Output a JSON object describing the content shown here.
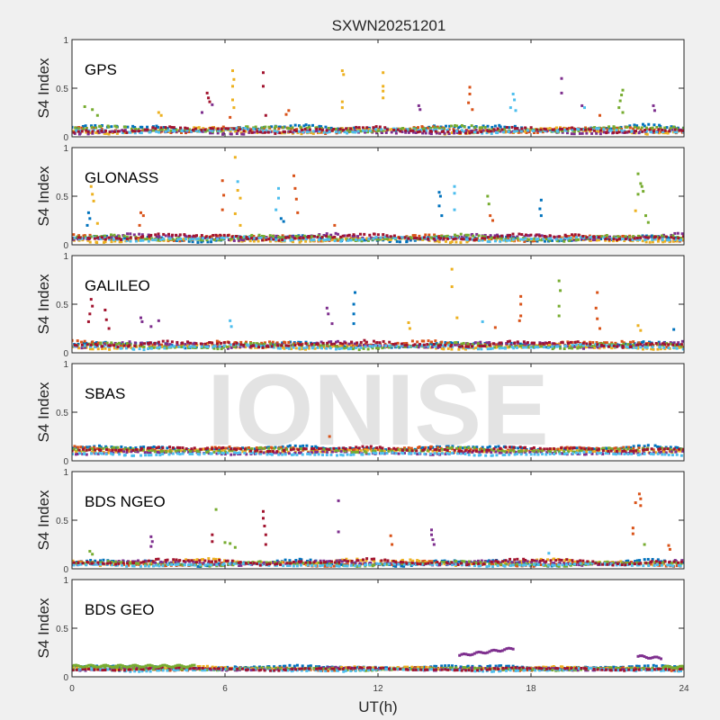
{
  "chart_data": {
    "type": "scatter",
    "title": "SXWN20251201",
    "xlabel": "UT(h)",
    "ylabel": "S4 Index",
    "xlim": [
      0,
      24
    ],
    "ylim": [
      0,
      1
    ],
    "xticks": [
      "0",
      "6",
      "12",
      "18",
      "24"
    ],
    "xtick_values": [
      0,
      6,
      12,
      18,
      24
    ],
    "yticks": [
      "0",
      "0.5",
      "1"
    ],
    "ytick_values": [
      0,
      0.5,
      1
    ],
    "watermark": "IONISE",
    "colors": [
      "#0072BD",
      "#D95319",
      "#EDB120",
      "#7E2F8E",
      "#77AC30",
      "#4DBEEE",
      "#A2142F"
    ],
    "panels": [
      {
        "name": "GPS",
        "baseline": [
          [
            0.09,
            0.02
          ],
          [
            0.07,
            0.02
          ],
          [
            0.06,
            0.02
          ],
          [
            0.05,
            0.015
          ],
          [
            0.08,
            0.02
          ],
          [
            0.06,
            0.015
          ],
          [
            0.07,
            0.02
          ]
        ],
        "spikes": [
          [
            0.5,
            0.31,
            4
          ],
          [
            0.8,
            0.28,
            4
          ],
          [
            1.0,
            0.22,
            4
          ],
          [
            3.4,
            0.25,
            2
          ],
          [
            3.5,
            0.22,
            2
          ],
          [
            5.3,
            0.45,
            6
          ],
          [
            5.35,
            0.4,
            6
          ],
          [
            5.4,
            0.36,
            6
          ],
          [
            5.5,
            0.33,
            3
          ],
          [
            5.1,
            0.25,
            3
          ],
          [
            6.3,
            0.68,
            2
          ],
          [
            6.35,
            0.59,
            2
          ],
          [
            6.3,
            0.52,
            2
          ],
          [
            6.3,
            0.38,
            2
          ],
          [
            6.35,
            0.3,
            2
          ],
          [
            6.2,
            0.2,
            1
          ],
          [
            7.5,
            0.66,
            6
          ],
          [
            7.5,
            0.52,
            6
          ],
          [
            7.6,
            0.22,
            6
          ],
          [
            8.4,
            0.23,
            1
          ],
          [
            8.5,
            0.27,
            1
          ],
          [
            10.6,
            0.68,
            2
          ],
          [
            10.65,
            0.64,
            2
          ],
          [
            10.6,
            0.36,
            2
          ],
          [
            10.6,
            0.3,
            2
          ],
          [
            12.2,
            0.66,
            2
          ],
          [
            12.2,
            0.52,
            2
          ],
          [
            12.2,
            0.47,
            2
          ],
          [
            12.2,
            0.4,
            2
          ],
          [
            13.6,
            0.32,
            3
          ],
          [
            13.65,
            0.28,
            3
          ],
          [
            15.6,
            0.51,
            1
          ],
          [
            15.6,
            0.44,
            1
          ],
          [
            15.55,
            0.35,
            1
          ],
          [
            15.7,
            0.28,
            1
          ],
          [
            17.3,
            0.44,
            5
          ],
          [
            17.35,
            0.38,
            5
          ],
          [
            17.2,
            0.3,
            5
          ],
          [
            17.4,
            0.27,
            5
          ],
          [
            19.2,
            0.6,
            3
          ],
          [
            19.2,
            0.45,
            3
          ],
          [
            20.0,
            0.32,
            3
          ],
          [
            20.1,
            0.3,
            5
          ],
          [
            20.7,
            0.22,
            1
          ],
          [
            21.6,
            0.48,
            4
          ],
          [
            21.55,
            0.43,
            4
          ],
          [
            21.5,
            0.37,
            4
          ],
          [
            21.45,
            0.3,
            4
          ],
          [
            21.6,
            0.25,
            4
          ],
          [
            22.8,
            0.32,
            3
          ],
          [
            22.85,
            0.27,
            3
          ]
        ]
      },
      {
        "name": "GLONASS",
        "baseline": [
          [
            0.06,
            0.02
          ],
          [
            0.07,
            0.02
          ],
          [
            0.05,
            0.015
          ],
          [
            0.08,
            0.02
          ],
          [
            0.07,
            0.02
          ],
          [
            0.06,
            0.015
          ],
          [
            0.08,
            0.02
          ]
        ],
        "spikes": [
          [
            0.75,
            0.6,
            2
          ],
          [
            0.8,
            0.52,
            2
          ],
          [
            0.85,
            0.45,
            2
          ],
          [
            0.65,
            0.33,
            0
          ],
          [
            0.7,
            0.27,
            0
          ],
          [
            0.6,
            0.2,
            0
          ],
          [
            1.0,
            0.22,
            2
          ],
          [
            2.7,
            0.33,
            1
          ],
          [
            2.8,
            0.3,
            1
          ],
          [
            2.65,
            0.2,
            1
          ],
          [
            5.9,
            0.66,
            1
          ],
          [
            5.95,
            0.51,
            1
          ],
          [
            5.9,
            0.36,
            1
          ],
          [
            6.4,
            0.9,
            2
          ],
          [
            6.5,
            0.65,
            5
          ],
          [
            6.5,
            0.56,
            2
          ],
          [
            6.6,
            0.48,
            2
          ],
          [
            6.4,
            0.32,
            2
          ],
          [
            6.6,
            0.2,
            2
          ],
          [
            8.1,
            0.58,
            5
          ],
          [
            8.1,
            0.48,
            5
          ],
          [
            8.0,
            0.36,
            5
          ],
          [
            8.2,
            0.27,
            0
          ],
          [
            8.3,
            0.24,
            0
          ],
          [
            8.7,
            0.71,
            1
          ],
          [
            8.75,
            0.58,
            1
          ],
          [
            8.8,
            0.47,
            1
          ],
          [
            8.85,
            0.33,
            1
          ],
          [
            10.3,
            0.2,
            1
          ],
          [
            14.4,
            0.54,
            0
          ],
          [
            14.45,
            0.5,
            0
          ],
          [
            14.4,
            0.4,
            0
          ],
          [
            14.5,
            0.3,
            0
          ],
          [
            15.0,
            0.6,
            5
          ],
          [
            15.0,
            0.53,
            5
          ],
          [
            15.0,
            0.36,
            5
          ],
          [
            16.3,
            0.5,
            4
          ],
          [
            16.35,
            0.42,
            4
          ],
          [
            16.4,
            0.3,
            1
          ],
          [
            16.5,
            0.25,
            1
          ],
          [
            18.4,
            0.46,
            0
          ],
          [
            18.35,
            0.37,
            0
          ],
          [
            18.4,
            0.3,
            0
          ],
          [
            22.2,
            0.73,
            4
          ],
          [
            22.3,
            0.63,
            4
          ],
          [
            22.35,
            0.6,
            4
          ],
          [
            22.4,
            0.55,
            4
          ],
          [
            22.2,
            0.52,
            4
          ],
          [
            22.1,
            0.35,
            2
          ],
          [
            22.5,
            0.3,
            4
          ],
          [
            22.6,
            0.23,
            4
          ]
        ]
      },
      {
        "name": "GALILEO",
        "baseline": [
          [
            0.08,
            0.02
          ],
          [
            0.09,
            0.02
          ],
          [
            0.06,
            0.015
          ],
          [
            0.08,
            0.02
          ],
          [
            0.07,
            0.02
          ],
          [
            0.06,
            0.015
          ],
          [
            0.09,
            0.02
          ]
        ],
        "spikes": [
          [
            0.75,
            0.55,
            6
          ],
          [
            0.8,
            0.48,
            6
          ],
          [
            0.7,
            0.4,
            6
          ],
          [
            0.65,
            0.32,
            6
          ],
          [
            1.3,
            0.44,
            6
          ],
          [
            1.35,
            0.34,
            6
          ],
          [
            1.45,
            0.25,
            6
          ],
          [
            2.7,
            0.36,
            3
          ],
          [
            2.75,
            0.32,
            3
          ],
          [
            3.1,
            0.27,
            3
          ],
          [
            3.4,
            0.33,
            3
          ],
          [
            6.2,
            0.33,
            5
          ],
          [
            6.25,
            0.27,
            5
          ],
          [
            10.0,
            0.46,
            3
          ],
          [
            10.05,
            0.4,
            3
          ],
          [
            10.2,
            0.3,
            3
          ],
          [
            11.1,
            0.62,
            0
          ],
          [
            11.05,
            0.5,
            0
          ],
          [
            11.05,
            0.4,
            0
          ],
          [
            11.05,
            0.3,
            0
          ],
          [
            13.2,
            0.31,
            2
          ],
          [
            13.25,
            0.25,
            2
          ],
          [
            14.9,
            0.86,
            2
          ],
          [
            14.9,
            0.68,
            2
          ],
          [
            15.1,
            0.36,
            2
          ],
          [
            16.6,
            0.26,
            1
          ],
          [
            16.1,
            0.32,
            5
          ],
          [
            17.6,
            0.58,
            1
          ],
          [
            17.6,
            0.5,
            1
          ],
          [
            17.6,
            0.38,
            1
          ],
          [
            17.55,
            0.33,
            1
          ],
          [
            19.1,
            0.74,
            4
          ],
          [
            19.15,
            0.64,
            4
          ],
          [
            19.1,
            0.48,
            4
          ],
          [
            19.1,
            0.38,
            4
          ],
          [
            20.6,
            0.62,
            1
          ],
          [
            20.55,
            0.46,
            1
          ],
          [
            20.6,
            0.35,
            1
          ],
          [
            20.7,
            0.25,
            1
          ],
          [
            22.2,
            0.28,
            2
          ],
          [
            22.3,
            0.23,
            2
          ],
          [
            23.6,
            0.24,
            0
          ]
        ]
      },
      {
        "name": "SBAS",
        "baseline": [
          [
            0.13,
            0.015
          ],
          [
            0.12,
            0.015
          ],
          [
            0.1,
            0.01
          ],
          [
            0.08,
            0.01
          ],
          [
            0.11,
            0.015
          ],
          [
            0.07,
            0.01
          ],
          [
            0.12,
            0.015
          ]
        ],
        "spikes": [
          [
            10.1,
            0.25,
            1
          ]
        ]
      },
      {
        "name": "BDS NGEO",
        "baseline": [
          [
            0.06,
            0.02
          ],
          [
            0.05,
            0.015
          ],
          [
            0.07,
            0.02
          ],
          [
            0.06,
            0.015
          ],
          [
            0.05,
            0.015
          ],
          [
            0.04,
            0.01
          ],
          [
            0.07,
            0.02
          ]
        ],
        "spikes": [
          [
            0.7,
            0.18,
            4
          ],
          [
            0.8,
            0.15,
            4
          ],
          [
            3.1,
            0.33,
            3
          ],
          [
            3.15,
            0.28,
            3
          ],
          [
            3.1,
            0.23,
            3
          ],
          [
            5.65,
            0.61,
            4
          ],
          [
            5.5,
            0.35,
            6
          ],
          [
            5.5,
            0.28,
            6
          ],
          [
            6.0,
            0.27,
            4
          ],
          [
            6.2,
            0.26,
            4
          ],
          [
            6.4,
            0.22,
            4
          ],
          [
            7.5,
            0.59,
            6
          ],
          [
            7.5,
            0.52,
            6
          ],
          [
            7.55,
            0.44,
            6
          ],
          [
            7.6,
            0.35,
            6
          ],
          [
            7.6,
            0.25,
            6
          ],
          [
            10.45,
            0.7,
            3
          ],
          [
            10.45,
            0.38,
            3
          ],
          [
            12.5,
            0.34,
            1
          ],
          [
            12.55,
            0.25,
            1
          ],
          [
            14.1,
            0.4,
            3
          ],
          [
            14.1,
            0.35,
            3
          ],
          [
            14.15,
            0.3,
            3
          ],
          [
            14.2,
            0.25,
            3
          ],
          [
            18.7,
            0.16,
            5
          ],
          [
            22.25,
            0.77,
            1
          ],
          [
            22.3,
            0.72,
            1
          ],
          [
            22.1,
            0.68,
            1
          ],
          [
            22.3,
            0.65,
            1
          ],
          [
            22.0,
            0.42,
            1
          ],
          [
            22.0,
            0.36,
            1
          ],
          [
            22.45,
            0.25,
            4
          ],
          [
            23.4,
            0.24,
            1
          ],
          [
            23.45,
            0.2,
            1
          ]
        ]
      },
      {
        "name": "BDS GEO",
        "baseline": [
          [
            0.1,
            0.01
          ],
          [
            0.08,
            0.01
          ],
          [
            0.09,
            0.01
          ],
          [
            0.08,
            0.01
          ],
          [
            0.08,
            0.01
          ],
          [
            0.07,
            0.01
          ],
          [
            0.08,
            0.01
          ]
        ],
        "spikes": [],
        "tracks": [
          {
            "color": 4,
            "from": 0,
            "to": 4.8,
            "level": 0.11
          },
          {
            "color": 3,
            "from": 15.2,
            "to": 17.3,
            "level": 0.22,
            "end_level": 0.29
          },
          {
            "color": 3,
            "from": 22.2,
            "to": 23.1,
            "level": 0.21,
            "end_level": 0.19
          },
          {
            "color": 4,
            "from": 23.2,
            "to": 24,
            "level": 0.1
          }
        ]
      }
    ]
  }
}
